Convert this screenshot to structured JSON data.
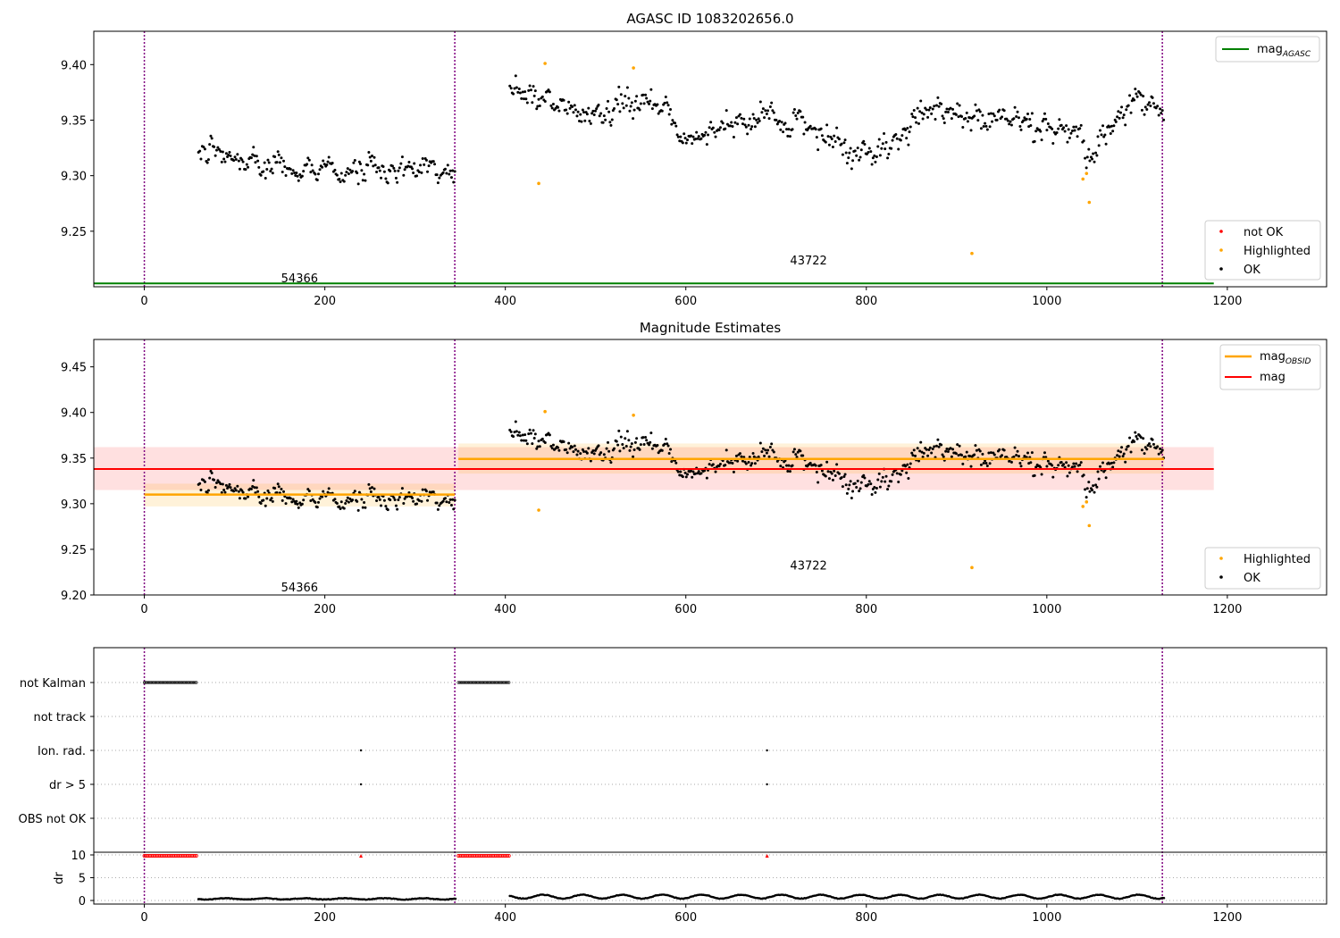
{
  "chart_data": [
    {
      "type": "scatter",
      "title": "AGASC ID 1083202656.0",
      "xlim": [
        -56,
        1310
      ],
      "ylim": [
        9.2,
        9.43
      ],
      "x_ticks": [
        0,
        200,
        400,
        600,
        800,
        1000,
        1200
      ],
      "y_ticks": [
        9.25,
        9.3,
        9.35,
        9.4
      ],
      "y_tick_labels": [
        "9.25",
        "9.30",
        "9.35",
        "9.40"
      ],
      "vlines": [
        0,
        344,
        1128
      ],
      "annotations": [
        {
          "text": "54366",
          "x": 172,
          "y": 9.204
        },
        {
          "text": "43722",
          "x": 736,
          "y": 9.22
        }
      ],
      "reference_lines": [
        {
          "name": "magAGASC",
          "label_main": "mag",
          "label_sub": "AGASC",
          "y": 9.203,
          "x_range": [
            -56,
            1185
          ],
          "color": "#008000"
        }
      ],
      "segments": [
        {
          "x_range": [
            60,
            345
          ],
          "levels": [
            [
              60,
              9.322
            ],
            [
              100,
              9.318
            ],
            [
              140,
              9.303
            ],
            [
              220,
              9.303
            ],
            [
              345,
              9.305
            ]
          ],
          "jitter": 0.011
        },
        {
          "x_range": [
            405,
            1130
          ],
          "levels": [
            [
              405,
              9.375
            ],
            [
              470,
              9.365
            ],
            [
              500,
              9.35
            ],
            [
              540,
              9.372
            ],
            [
              600,
              9.338
            ],
            [
              700,
              9.35
            ],
            [
              800,
              9.32
            ],
            [
              880,
              9.36
            ],
            [
              960,
              9.342
            ],
            [
              1030,
              9.342
            ],
            [
              1040,
              9.315
            ],
            [
              1065,
              9.325
            ],
            [
              1080,
              9.36
            ],
            [
              1130,
              9.36
            ]
          ],
          "jitter": 0.012
        }
      ],
      "highlighted_points": [
        [
          437,
          9.293
        ],
        [
          444,
          9.401
        ],
        [
          542,
          9.397
        ],
        [
          917,
          9.23
        ],
        [
          1040,
          9.297
        ],
        [
          1044,
          9.302
        ],
        [
          1047,
          9.276
        ]
      ],
      "not_ok_points": [],
      "legend_series": [
        {
          "name": "not OK",
          "color": "#ff0000"
        },
        {
          "name": "Highlighted",
          "color": "#ffa500"
        },
        {
          "name": "OK",
          "color": "#000000"
        }
      ]
    },
    {
      "type": "scatter",
      "title": "Magnitude Estimates",
      "xlim": [
        -56,
        1310
      ],
      "ylim": [
        9.2,
        9.48
      ],
      "x_ticks": [
        0,
        200,
        400,
        600,
        800,
        1000,
        1200
      ],
      "y_ticks": [
        9.2,
        9.25,
        9.3,
        9.35,
        9.4,
        9.45
      ],
      "y_tick_labels": [
        "9.20",
        "9.25",
        "9.30",
        "9.35",
        "9.40",
        "9.45"
      ],
      "vlines": [
        0,
        344,
        1128
      ],
      "annotations": [
        {
          "text": "54366",
          "x": 172,
          "y": 9.204
        },
        {
          "text": "43722",
          "x": 736,
          "y": 9.228
        }
      ],
      "mag_line": {
        "y": 9.338,
        "band": [
          9.315,
          9.362
        ],
        "x_range": [
          -56,
          1185
        ],
        "color": "#ff0000"
      },
      "obsid_lines": [
        {
          "x_range": [
            0,
            344
          ],
          "y": 9.31,
          "band": [
            9.297,
            9.322
          ]
        },
        {
          "x_range": [
            348,
            1130
          ],
          "y": 9.349,
          "band": [
            9.333,
            9.366
          ]
        }
      ],
      "legend_lines": [
        {
          "label_main": "mag",
          "label_sub": "OBSID",
          "color": "#ffa500"
        },
        {
          "label_main": "mag",
          "label_sub": "",
          "color": "#ff0000"
        }
      ],
      "legend_series": [
        {
          "name": "Highlighted",
          "color": "#ffa500"
        },
        {
          "name": "OK",
          "color": "#000000"
        }
      ]
    },
    {
      "type": "scatter",
      "xlim": [
        -56,
        1310
      ],
      "x_ticks": [
        0,
        200,
        400,
        600,
        800,
        1000,
        1200
      ],
      "vlines": [
        0,
        344,
        1128
      ],
      "flag_rows": [
        "not Kalman",
        "not track",
        "Ion. rad.",
        "dr > 5",
        "OBS not OK"
      ],
      "flag_points": [
        {
          "row": "not Kalman",
          "x_ranges": [
            [
              0,
              58
            ],
            [
              348,
              405
            ]
          ]
        },
        {
          "row": "Ion. rad.",
          "x": [
            240,
            690
          ]
        },
        {
          "row": "dr > 5",
          "x": [
            240,
            690
          ]
        }
      ],
      "dr": {
        "ylabel": "dr",
        "y_ticks": [
          0,
          5,
          10
        ],
        "ylim": [
          -1,
          11
        ],
        "clipped_ranges": [
          [
            0,
            58
          ],
          [
            348,
            405
          ]
        ],
        "clipped_points": [
          240,
          690
        ],
        "segments": [
          [
            60,
            345,
            0.4,
            0.2
          ],
          [
            405,
            1130,
            0.9,
            0.6
          ]
        ]
      }
    }
  ]
}
